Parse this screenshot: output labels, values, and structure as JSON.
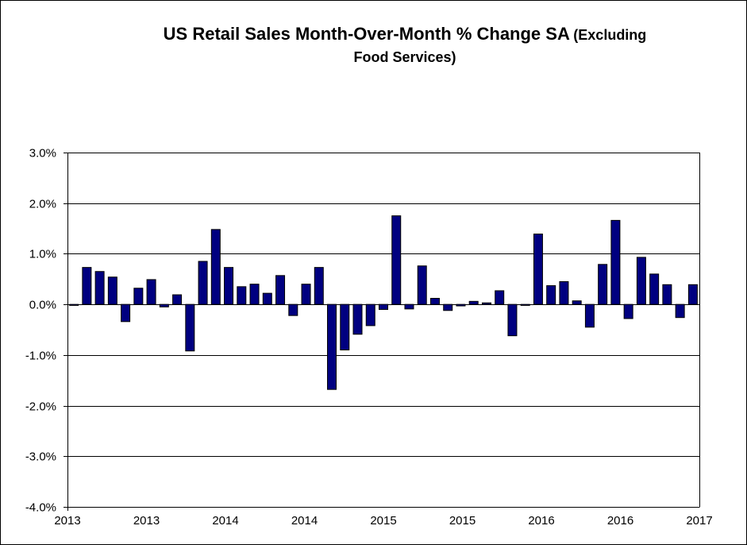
{
  "chart_data": {
    "type": "bar",
    "title": "US Retail Sales Month-Over-Month %  Change SA",
    "subtitle_part1": "(Excluding",
    "subtitle_part2": "Food Services)",
    "xlabel": "",
    "ylabel": "",
    "ylim": [
      -4.0,
      3.0
    ],
    "yticks": [
      3.0,
      2.0,
      1.0,
      0.0,
      -1.0,
      -2.0,
      -3.0,
      -4.0
    ],
    "ytick_labels": [
      "3.0%",
      "2.0%",
      "1.0%",
      "0.0%",
      "-1.0%",
      "-2.0%",
      "-3.0%",
      "-4.0%"
    ],
    "xtick_labels": [
      "2013",
      "2013",
      "2014",
      "2014",
      "2015",
      "2015",
      "2016",
      "2016",
      "2017"
    ],
    "grid": true,
    "legend": "none",
    "series": [
      {
        "name": "US Retail Sales MoM % Change SA",
        "color": "#000080",
        "values": [
          -0.02,
          0.73,
          0.65,
          0.54,
          -0.34,
          0.32,
          0.49,
          -0.05,
          0.19,
          -0.92,
          0.85,
          1.48,
          0.73,
          0.35,
          0.4,
          0.22,
          0.57,
          -0.22,
          0.4,
          0.73,
          -1.68,
          -0.9,
          -0.59,
          -0.42,
          -0.1,
          1.75,
          -0.09,
          0.76,
          0.12,
          -0.12,
          -0.03,
          0.06,
          0.03,
          0.27,
          -0.62,
          -0.02,
          1.39,
          0.37,
          0.45,
          0.07,
          -0.45,
          0.79,
          1.66,
          -0.28,
          0.93,
          0.6,
          0.39,
          -0.26,
          0.39
        ]
      }
    ]
  }
}
